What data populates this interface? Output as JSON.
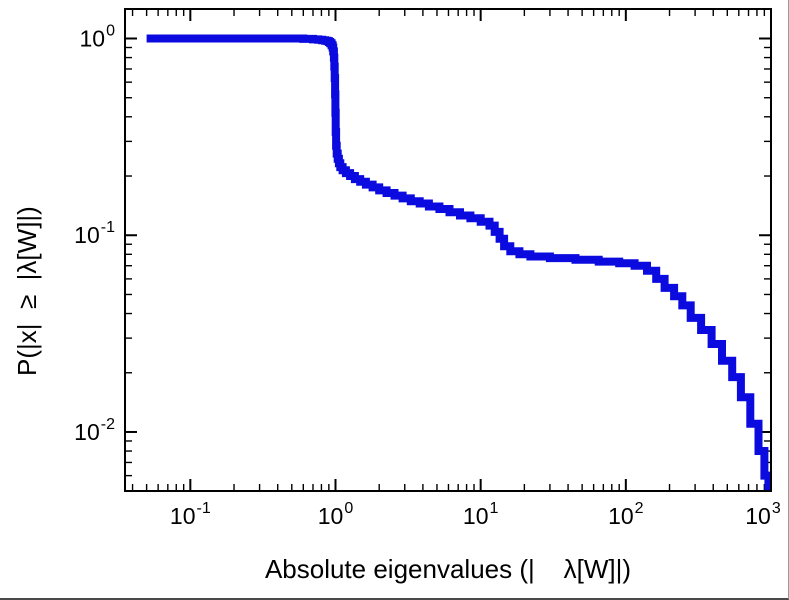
{
  "figure": {
    "background": "#ffffff"
  },
  "chart_data": {
    "type": "line",
    "subtype": "step-ccdf",
    "title": "",
    "xlabel": "Absolute eigenvalues (|    λ[W]|)",
    "ylabel": "P(|x|  ≥  |λ[W]|)",
    "x_scale": "log",
    "y_scale": "log",
    "x_range_exp": [
      -1.45,
      3
    ],
    "y_range_exp": [
      -2.3,
      0.15
    ],
    "x_tick_exponents": [
      -1,
      0,
      1,
      2,
      3
    ],
    "y_tick_exponents": [
      0,
      -1,
      -2
    ],
    "grid": false,
    "legend": false,
    "line_color": "#0b0be0",
    "frame_color": "#000000",
    "line_width": 8,
    "step_mode": "after",
    "series": [
      {
        "name": "P(|x| >= |lambda[W]|)",
        "points": [
          [
            0.05,
            1.0
          ],
          [
            0.6,
            0.995
          ],
          [
            0.7,
            0.99
          ],
          [
            0.76,
            0.985
          ],
          [
            0.81,
            0.98
          ],
          [
            0.85,
            0.975
          ],
          [
            0.88,
            0.97
          ],
          [
            0.9,
            0.96
          ],
          [
            0.92,
            0.945
          ],
          [
            0.94,
            0.925
          ],
          [
            0.955,
            0.9
          ],
          [
            0.965,
            0.86
          ],
          [
            0.975,
            0.8
          ],
          [
            0.982,
            0.72
          ],
          [
            0.988,
            0.63
          ],
          [
            0.993,
            0.52
          ],
          [
            0.998,
            0.42
          ],
          [
            1.003,
            0.335
          ],
          [
            1.01,
            0.285
          ],
          [
            1.02,
            0.26
          ],
          [
            1.035,
            0.245
          ],
          [
            1.055,
            0.232
          ],
          [
            1.08,
            0.222
          ],
          [
            1.12,
            0.214
          ],
          [
            1.18,
            0.207
          ],
          [
            1.26,
            0.2
          ],
          [
            1.36,
            0.193
          ],
          [
            1.48,
            0.187
          ],
          [
            1.62,
            0.181
          ],
          [
            1.8,
            0.175
          ],
          [
            2.0,
            0.169
          ],
          [
            2.25,
            0.164
          ],
          [
            2.55,
            0.159
          ],
          [
            2.9,
            0.154
          ],
          [
            3.3,
            0.149
          ],
          [
            3.8,
            0.145
          ],
          [
            4.4,
            0.14
          ],
          [
            5.2,
            0.136
          ],
          [
            6.1,
            0.131
          ],
          [
            7.2,
            0.126
          ],
          [
            8.5,
            0.122
          ],
          [
            10.0,
            0.117
          ],
          [
            11.5,
            0.112
          ],
          [
            12.5,
            0.104
          ],
          [
            13.5,
            0.096
          ],
          [
            14.5,
            0.088
          ],
          [
            16.0,
            0.083
          ],
          [
            18.5,
            0.08
          ],
          [
            22.0,
            0.078
          ],
          [
            30.0,
            0.0765
          ],
          [
            45.0,
            0.075
          ],
          [
            65.0,
            0.0735
          ],
          [
            90.0,
            0.072
          ],
          [
            115,
            0.07
          ],
          [
            140,
            0.066
          ],
          [
            162,
            0.06
          ],
          [
            185,
            0.054
          ],
          [
            215,
            0.049
          ],
          [
            245,
            0.044
          ],
          [
            280,
            0.038
          ],
          [
            330,
            0.033
          ],
          [
            390,
            0.028
          ],
          [
            460,
            0.023
          ],
          [
            540,
            0.019
          ],
          [
            620,
            0.015
          ],
          [
            720,
            0.011
          ],
          [
            820,
            0.008
          ],
          [
            900,
            0.006
          ],
          [
            960,
            0.005
          ],
          [
            1000,
            0.0048
          ]
        ]
      }
    ]
  }
}
